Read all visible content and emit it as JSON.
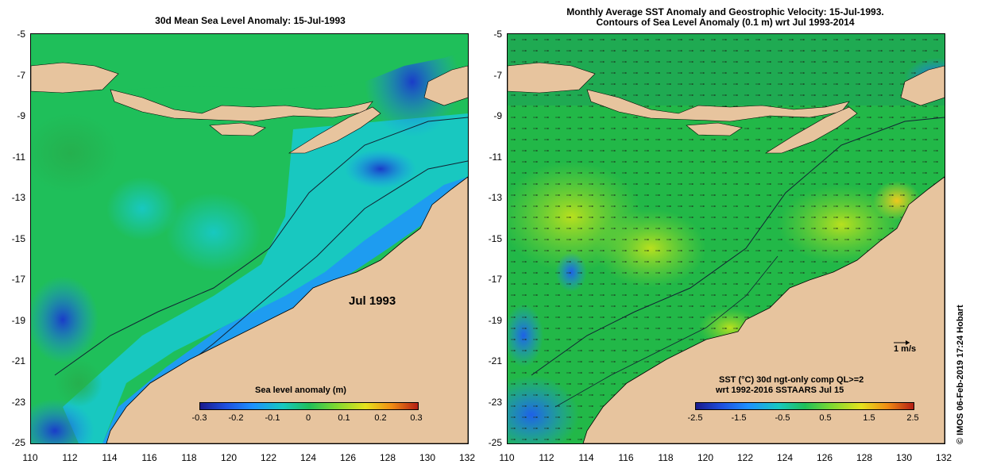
{
  "left_map": {
    "title": "30d Mean Sea Level Anomaly: 15-Jul-1993",
    "annotation": "Jul 1993",
    "colorbar": {
      "title": "Sea level anomaly (m)",
      "ticks": [
        "-0.3",
        "-0.2",
        "-0.1",
        "0",
        "0.1",
        "0.2",
        "0.3"
      ]
    }
  },
  "right_map": {
    "title_line1": "Monthly Average SST Anomaly  and Geostrophic Velocity: 15-Jul-1993.",
    "title_line2": "Contours of Sea Level Anomaly (0.1 m) wrt Jul 1993-2014",
    "vector_scale": "1 m/s",
    "colorbar": {
      "title_line1": "SST (°C) 30d ngt-only comp QL>=2",
      "title_line2": "wrt 1992-2016 SSTAARS Jul 15",
      "ticks": [
        "-2.5",
        "-1.5",
        "-0.5",
        "0.5",
        "1.5",
        "2.5"
      ]
    }
  },
  "axes": {
    "lat_ticks": [
      "-5",
      "-7",
      "-9",
      "-11",
      "-13",
      "-15",
      "-17",
      "-19",
      "-21",
      "-23",
      "-25"
    ],
    "lon_ticks": [
      "110",
      "112",
      "114",
      "116",
      "118",
      "120",
      "122",
      "124",
      "126",
      "128",
      "130",
      "132"
    ]
  },
  "copyright": "© IMOS 06-Feb-2019 17:24 Hobart",
  "colors": {
    "land": "#e7c49e",
    "sea_green": "#1fbf5a",
    "sea_cyan": "#18c8c0",
    "sea_blue": "#1e90ff",
    "deep_blue": "#1a3cc8"
  }
}
